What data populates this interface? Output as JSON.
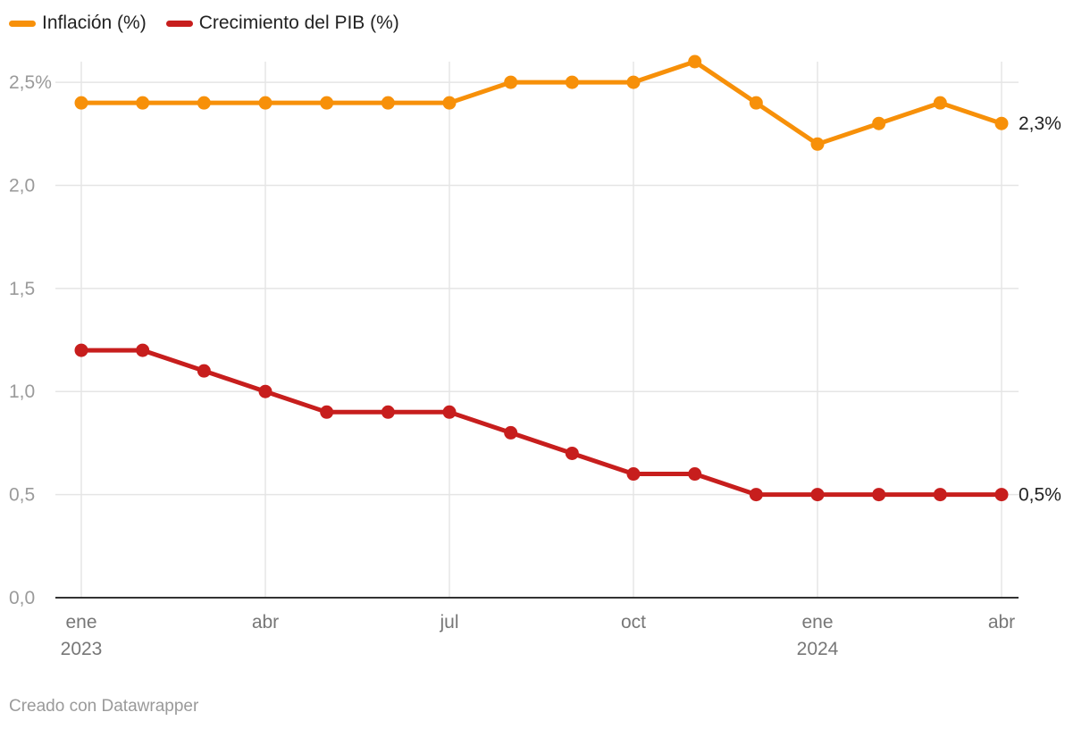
{
  "chart_data": {
    "type": "line",
    "x": [
      "2023-01",
      "2023-02",
      "2023-03",
      "2023-04",
      "2023-05",
      "2023-06",
      "2023-07",
      "2023-08",
      "2023-09",
      "2023-10",
      "2023-11",
      "2023-12",
      "2024-01",
      "2024-02",
      "2024-03",
      "2024-04"
    ],
    "series": [
      {
        "name": "Inflación (%)",
        "color": "#f79009",
        "values": [
          2.4,
          2.4,
          2.4,
          2.4,
          2.4,
          2.4,
          2.4,
          2.5,
          2.5,
          2.5,
          2.6,
          2.4,
          2.2,
          2.3,
          2.4,
          2.3
        ],
        "end_label": "2,3%"
      },
      {
        "name": "Crecimiento del PIB (%)",
        "color": "#c71e1d",
        "values": [
          1.2,
          1.2,
          1.1,
          1.0,
          0.9,
          0.9,
          0.9,
          0.8,
          0.7,
          0.6,
          0.6,
          0.5,
          0.5,
          0.5,
          0.5,
          0.5
        ],
        "end_label": "0,5%"
      }
    ],
    "ylim": [
      0,
      2.6
    ],
    "yticks": [
      {
        "value": 0,
        "label": "0,0"
      },
      {
        "value": 0.5,
        "label": "0,5"
      },
      {
        "value": 1.0,
        "label": "1,0"
      },
      {
        "value": 1.5,
        "label": "1,5"
      },
      {
        "value": 2.0,
        "label": "2,0"
      },
      {
        "value": 2.5,
        "label": "2,5%"
      }
    ],
    "xticks": [
      {
        "index": 0,
        "label": "ene",
        "sublabel": "2023"
      },
      {
        "index": 3,
        "label": "abr",
        "sublabel": ""
      },
      {
        "index": 6,
        "label": "jul",
        "sublabel": ""
      },
      {
        "index": 9,
        "label": "oct",
        "sublabel": ""
      },
      {
        "index": 12,
        "label": "ene",
        "sublabel": "2024"
      },
      {
        "index": 15,
        "label": "abr",
        "sublabel": ""
      }
    ],
    "grid": true,
    "legend_position": "top-left"
  },
  "footer": {
    "credit": "Creado con Datawrapper"
  }
}
